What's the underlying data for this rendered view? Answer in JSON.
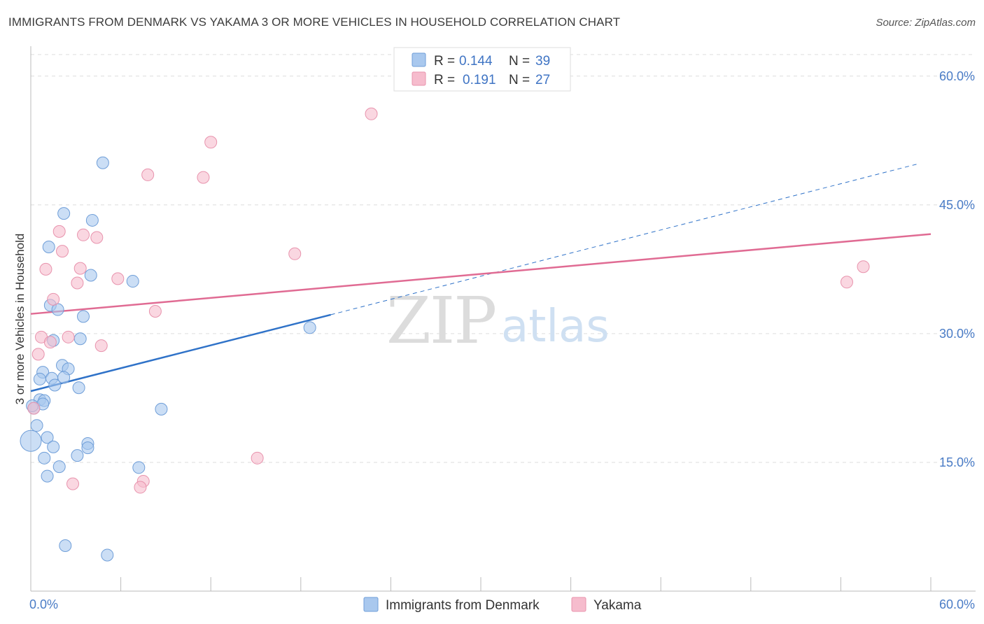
{
  "header": {
    "title": "IMMIGRANTS FROM DENMARK VS YAKAMA 3 OR MORE VEHICLES IN HOUSEHOLD CORRELATION CHART",
    "source": "Source: ZipAtlas.com"
  },
  "watermark": {
    "zip": "ZIP",
    "atlas": "atlas"
  },
  "colors": {
    "denmark_fill": "#a9c8ee",
    "denmark_stroke": "#6f9ed8",
    "denmark_line": "#2f72c8",
    "yakama_fill": "#f6bccd",
    "yakama_stroke": "#e893ad",
    "yakama_line": "#e06b93",
    "grid": "#dddddd",
    "axis_text": "#4a7cc6"
  },
  "legend": {
    "rows": [
      {
        "r_label": "R =",
        "r_value": "0.144",
        "n_label": "N =",
        "n_value": "39"
      },
      {
        "r_label": "R =",
        "r_value": "0.191",
        "n_label": "N =",
        "n_value": "27"
      }
    ]
  },
  "chart_data": {
    "type": "scatter",
    "title": "IMMIGRANTS FROM DENMARK VS YAKAMA 3 OR MORE VEHICLES IN HOUSEHOLD CORRELATION CHART",
    "xlabel": "",
    "ylabel": "3 or more Vehicles in Household",
    "xlim": [
      0,
      60
    ],
    "ylim": [
      0,
      63
    ],
    "x_tick_labels": [
      "0.0%",
      "60.0%"
    ],
    "y_ticks": [
      15,
      30,
      45,
      60
    ],
    "y_tick_labels": [
      "15.0%",
      "30.0%",
      "45.0%",
      "60.0%"
    ],
    "grid": true,
    "legend_position": "top-center",
    "series": [
      {
        "name": "Immigrants from Denmark",
        "r": 0.144,
        "n": 39,
        "points": [
          [
            4.8,
            49.9
          ],
          [
            2.2,
            44.0
          ],
          [
            4.1,
            43.2
          ],
          [
            1.2,
            40.1
          ],
          [
            4.0,
            36.8
          ],
          [
            6.8,
            36.1
          ],
          [
            1.3,
            33.3
          ],
          [
            1.8,
            32.8
          ],
          [
            3.5,
            32.0
          ],
          [
            3.3,
            29.4
          ],
          [
            1.5,
            29.2
          ],
          [
            18.6,
            30.7
          ],
          [
            2.1,
            26.3
          ],
          [
            2.5,
            25.9
          ],
          [
            0.8,
            25.5
          ],
          [
            0.6,
            24.7
          ],
          [
            1.4,
            24.8
          ],
          [
            2.2,
            24.9
          ],
          [
            1.6,
            24.0
          ],
          [
            3.2,
            23.7
          ],
          [
            0.6,
            22.3
          ],
          [
            0.9,
            22.2
          ],
          [
            0.8,
            21.8
          ],
          [
            0.2,
            21.3
          ],
          [
            8.7,
            21.2
          ],
          [
            0.4,
            19.3
          ],
          [
            1.1,
            17.9
          ],
          [
            0.0,
            17.5
          ],
          [
            1.5,
            16.8
          ],
          [
            3.8,
            17.2
          ],
          [
            3.8,
            16.7
          ],
          [
            3.1,
            15.8
          ],
          [
            0.9,
            15.5
          ],
          [
            1.9,
            14.5
          ],
          [
            7.2,
            14.4
          ],
          [
            1.1,
            13.4
          ],
          [
            2.3,
            5.3
          ],
          [
            5.1,
            4.2
          ],
          [
            0.1,
            21.6
          ]
        ],
        "trend": {
          "x_solid": [
            0,
            20.0
          ],
          "y_solid": [
            23.3,
            32.2
          ],
          "x_dashed": [
            20.0,
            59.2
          ],
          "y_dashed": [
            32.2,
            49.8
          ]
        }
      },
      {
        "name": "Yakama",
        "r": 0.191,
        "n": 27,
        "points": [
          [
            22.7,
            55.6
          ],
          [
            12.0,
            52.3
          ],
          [
            7.8,
            48.5
          ],
          [
            11.5,
            48.2
          ],
          [
            1.9,
            41.9
          ],
          [
            3.5,
            41.5
          ],
          [
            4.4,
            41.2
          ],
          [
            2.1,
            39.6
          ],
          [
            17.6,
            39.3
          ],
          [
            1.0,
            37.5
          ],
          [
            3.3,
            37.6
          ],
          [
            5.8,
            36.4
          ],
          [
            3.1,
            35.9
          ],
          [
            55.5,
            37.8
          ],
          [
            54.4,
            36.0
          ],
          [
            1.5,
            34.0
          ],
          [
            8.3,
            32.6
          ],
          [
            0.7,
            29.6
          ],
          [
            2.5,
            29.6
          ],
          [
            1.3,
            29.0
          ],
          [
            4.7,
            28.6
          ],
          [
            0.5,
            27.6
          ],
          [
            0.2,
            21.3
          ],
          [
            15.1,
            15.5
          ],
          [
            2.8,
            12.5
          ],
          [
            7.5,
            12.8
          ],
          [
            7.3,
            12.1
          ]
        ],
        "trend": {
          "x": [
            0,
            60
          ],
          "y": [
            32.3,
            41.6
          ]
        }
      }
    ]
  }
}
